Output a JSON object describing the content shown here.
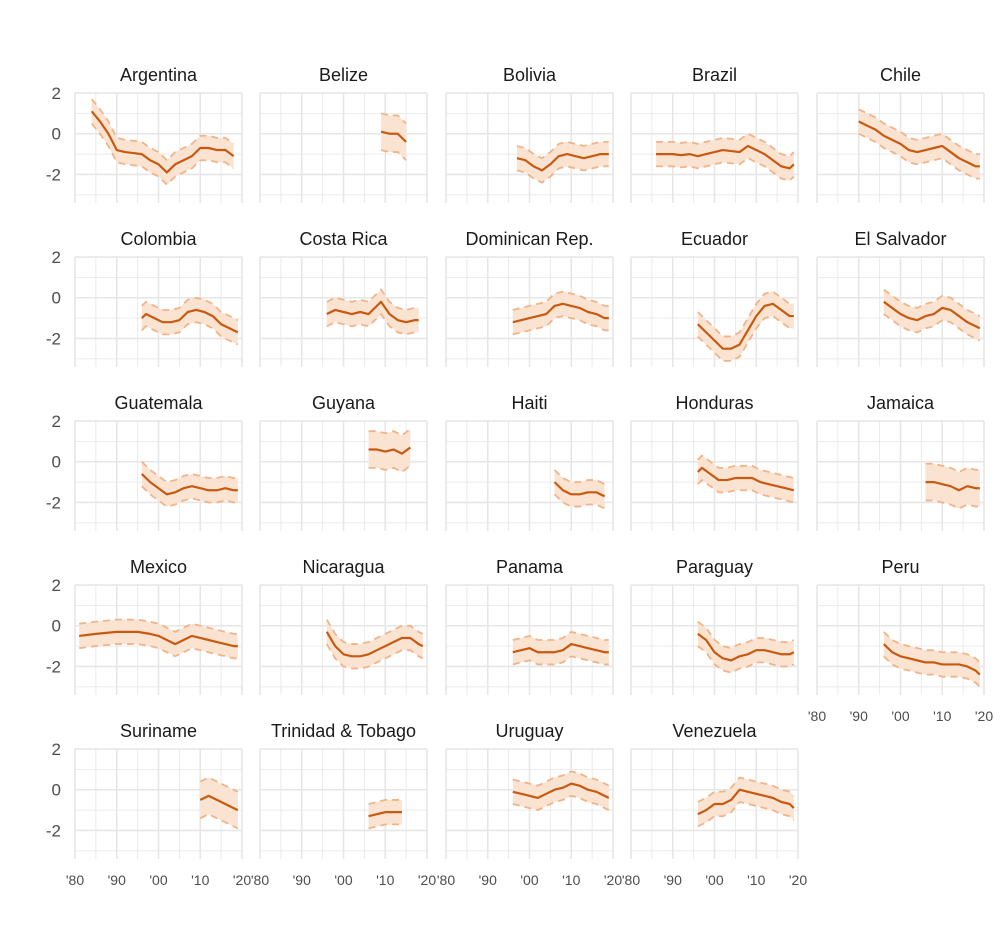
{
  "chart_data": {
    "type": "line",
    "layout": "small-multiples",
    "title": "",
    "xlabel": "",
    "ylabel": "",
    "xlim": [
      1980,
      2020
    ],
    "ylim": [
      -3.4,
      2.0
    ],
    "x_ticks": [
      1980,
      1990,
      2000,
      2010,
      2020
    ],
    "x_tick_labels": [
      "'80",
      "'90",
      "'00",
      "'10",
      "'20"
    ],
    "y_ticks": [
      2,
      0,
      -2
    ],
    "y_tick_labels": [
      "2",
      "0",
      "-2"
    ],
    "grid": true,
    "colors": {
      "line": "#c75a10",
      "band": "#fbe3d2",
      "band_edge": "#f0b48a",
      "grid": "#e6e6e6",
      "text": "#1a1a1a",
      "tick_text": "#4d4d4d"
    },
    "panels": [
      {
        "name": "Argentina",
        "x": [
          1984,
          1986,
          1988,
          1990,
          1992,
          1994,
          1996,
          1998,
          2000,
          2002,
          2004,
          2006,
          2008,
          2010,
          2012,
          2014,
          2016,
          2018
        ],
        "y": [
          1.1,
          0.6,
          0.0,
          -0.8,
          -0.9,
          -0.95,
          -1.0,
          -1.3,
          -1.5,
          -1.9,
          -1.5,
          -1.3,
          -1.1,
          -0.7,
          -0.7,
          -0.8,
          -0.8,
          -1.1
        ],
        "band": 0.6
      },
      {
        "name": "Belize",
        "x": [
          2009,
          2011,
          2013,
          2015
        ],
        "y": [
          0.1,
          0.0,
          0.0,
          -0.4
        ],
        "band": 0.9
      },
      {
        "name": "Bolivia",
        "x": [
          1997,
          1999,
          2001,
          2003,
          2005,
          2007,
          2009,
          2011,
          2013,
          2015,
          2017,
          2019
        ],
        "y": [
          -1.2,
          -1.3,
          -1.6,
          -1.8,
          -1.5,
          -1.1,
          -1.0,
          -1.1,
          -1.2,
          -1.1,
          -1.0,
          -1.0
        ],
        "band": 0.6
      },
      {
        "name": "Brazil",
        "x": [
          1986,
          1988,
          1990,
          1992,
          1994,
          1996,
          1998,
          2000,
          2002,
          2004,
          2006,
          2008,
          2010,
          2012,
          2014,
          2016,
          2018,
          2019
        ],
        "y": [
          -1.0,
          -1.0,
          -1.0,
          -1.05,
          -1.0,
          -1.1,
          -1.0,
          -0.9,
          -0.8,
          -0.85,
          -0.9,
          -0.6,
          -0.8,
          -1.0,
          -1.3,
          -1.6,
          -1.7,
          -1.5
        ],
        "band": 0.6
      },
      {
        "name": "Chile",
        "x": [
          1990,
          1992,
          1994,
          1996,
          1998,
          2000,
          2002,
          2004,
          2006,
          2008,
          2010,
          2012,
          2014,
          2016,
          2018,
          2019
        ],
        "y": [
          0.6,
          0.4,
          0.2,
          -0.1,
          -0.3,
          -0.5,
          -0.8,
          -0.9,
          -0.8,
          -0.7,
          -0.6,
          -0.9,
          -1.2,
          -1.4,
          -1.6,
          -1.6
        ],
        "band": 0.6
      },
      {
        "name": "Colombia",
        "x": [
          1996,
          1997,
          1999,
          2001,
          2003,
          2005,
          2007,
          2009,
          2011,
          2013,
          2015,
          2017,
          2019
        ],
        "y": [
          -1.0,
          -0.8,
          -1.0,
          -1.2,
          -1.2,
          -1.1,
          -0.7,
          -0.6,
          -0.7,
          -0.9,
          -1.3,
          -1.5,
          -1.7
        ],
        "band": 0.6
      },
      {
        "name": "Costa Rica",
        "x": [
          1996,
          1998,
          2000,
          2002,
          2004,
          2006,
          2008,
          2009,
          2011,
          2013,
          2015,
          2017,
          2018
        ],
        "y": [
          -0.8,
          -0.6,
          -0.7,
          -0.8,
          -0.7,
          -0.8,
          -0.4,
          -0.2,
          -0.8,
          -1.1,
          -1.2,
          -1.1,
          -1.1
        ],
        "band": 0.6
      },
      {
        "name": "Dominican Rep.",
        "x": [
          1996,
          1998,
          2000,
          2002,
          2004,
          2006,
          2008,
          2010,
          2012,
          2014,
          2016,
          2018,
          2019
        ],
        "y": [
          -1.2,
          -1.1,
          -1.0,
          -0.9,
          -0.8,
          -0.4,
          -0.3,
          -0.4,
          -0.5,
          -0.7,
          -0.8,
          -1.0,
          -1.0
        ],
        "band": 0.6
      },
      {
        "name": "Ecuador",
        "x": [
          1996,
          1998,
          2000,
          2002,
          2004,
          2006,
          2008,
          2010,
          2012,
          2014,
          2016,
          2018,
          2019
        ],
        "y": [
          -1.3,
          -1.7,
          -2.1,
          -2.5,
          -2.5,
          -2.3,
          -1.6,
          -0.9,
          -0.4,
          -0.3,
          -0.6,
          -0.9,
          -0.9
        ],
        "band": 0.6
      },
      {
        "name": "El Salvador",
        "x": [
          1996,
          1998,
          2000,
          2002,
          2004,
          2006,
          2008,
          2010,
          2012,
          2014,
          2016,
          2018,
          2019
        ],
        "y": [
          -0.2,
          -0.5,
          -0.8,
          -1.0,
          -1.1,
          -0.9,
          -0.8,
          -0.5,
          -0.6,
          -0.9,
          -1.2,
          -1.4,
          -1.5
        ],
        "band": 0.6
      },
      {
        "name": "Guatemala",
        "x": [
          1996,
          1998,
          2000,
          2002,
          2004,
          2006,
          2008,
          2010,
          2012,
          2014,
          2016,
          2018,
          2019
        ],
        "y": [
          -0.6,
          -1.0,
          -1.3,
          -1.6,
          -1.5,
          -1.3,
          -1.2,
          -1.3,
          -1.4,
          -1.4,
          -1.3,
          -1.4,
          -1.4
        ],
        "band": 0.6
      },
      {
        "name": "Guyana",
        "x": [
          2006,
          2008,
          2010,
          2012,
          2014,
          2016
        ],
        "y": [
          0.6,
          0.6,
          0.5,
          0.6,
          0.4,
          0.7
        ],
        "band": 0.9
      },
      {
        "name": "Haiti",
        "x": [
          2006,
          2008,
          2010,
          2012,
          2014,
          2016,
          2018
        ],
        "y": [
          -1.0,
          -1.4,
          -1.6,
          -1.6,
          -1.5,
          -1.5,
          -1.7
        ],
        "band": 0.6
      },
      {
        "name": "Honduras",
        "x": [
          1996,
          1997,
          1999,
          2001,
          2003,
          2005,
          2007,
          2009,
          2011,
          2013,
          2015,
          2017,
          2019
        ],
        "y": [
          -0.5,
          -0.3,
          -0.6,
          -0.9,
          -0.9,
          -0.8,
          -0.8,
          -0.8,
          -1.0,
          -1.1,
          -1.2,
          -1.3,
          -1.4
        ],
        "band": 0.6
      },
      {
        "name": "Jamaica",
        "x": [
          2006,
          2008,
          2010,
          2012,
          2014,
          2016,
          2018,
          2019
        ],
        "y": [
          -1.0,
          -1.0,
          -1.1,
          -1.2,
          -1.4,
          -1.2,
          -1.3,
          -1.3
        ],
        "band": 0.9
      },
      {
        "name": "Mexico",
        "x": [
          1981,
          1985,
          1990,
          1995,
          1998,
          2000,
          2002,
          2004,
          2006,
          2008,
          2010,
          2012,
          2014,
          2016,
          2018,
          2019
        ],
        "y": [
          -0.5,
          -0.4,
          -0.3,
          -0.3,
          -0.4,
          -0.5,
          -0.7,
          -0.9,
          -0.7,
          -0.5,
          -0.6,
          -0.7,
          -0.8,
          -0.9,
          -1.0,
          -1.0
        ],
        "band": 0.6
      },
      {
        "name": "Nicaragua",
        "x": [
          1996,
          1998,
          2000,
          2002,
          2004,
          2006,
          2008,
          2010,
          2012,
          2014,
          2016,
          2018,
          2019
        ],
        "y": [
          -0.3,
          -1.0,
          -1.4,
          -1.5,
          -1.5,
          -1.4,
          -1.2,
          -1.0,
          -0.8,
          -0.6,
          -0.6,
          -0.9,
          -1.0
        ],
        "band": 0.6
      },
      {
        "name": "Panama",
        "x": [
          1996,
          1998,
          2000,
          2002,
          2004,
          2006,
          2008,
          2010,
          2012,
          2014,
          2016,
          2018,
          2019
        ],
        "y": [
          -1.3,
          -1.2,
          -1.1,
          -1.3,
          -1.3,
          -1.3,
          -1.2,
          -0.9,
          -1.0,
          -1.1,
          -1.2,
          -1.3,
          -1.3
        ],
        "band": 0.6
      },
      {
        "name": "Paraguay",
        "x": [
          1996,
          1998,
          2000,
          2002,
          2004,
          2006,
          2008,
          2010,
          2012,
          2014,
          2016,
          2018,
          2019
        ],
        "y": [
          -0.4,
          -0.7,
          -1.3,
          -1.6,
          -1.7,
          -1.5,
          -1.4,
          -1.2,
          -1.2,
          -1.3,
          -1.4,
          -1.4,
          -1.3
        ],
        "band": 0.6
      },
      {
        "name": "Peru",
        "x": [
          1996,
          1998,
          2000,
          2002,
          2004,
          2006,
          2008,
          2010,
          2012,
          2014,
          2016,
          2018,
          2019
        ],
        "y": [
          -0.9,
          -1.3,
          -1.5,
          -1.6,
          -1.7,
          -1.8,
          -1.8,
          -1.9,
          -1.9,
          -1.9,
          -2.0,
          -2.2,
          -2.4
        ],
        "band": 0.6
      },
      {
        "name": "Suriname",
        "x": [
          2010,
          2012,
          2014,
          2016,
          2018,
          2019
        ],
        "y": [
          -0.5,
          -0.3,
          -0.5,
          -0.7,
          -0.9,
          -1.0
        ],
        "band": 0.9
      },
      {
        "name": "Trinidad & Tobago",
        "x": [
          2006,
          2008,
          2010,
          2012,
          2014
        ],
        "y": [
          -1.3,
          -1.2,
          -1.1,
          -1.1,
          -1.1
        ],
        "band": 0.6
      },
      {
        "name": "Uruguay",
        "x": [
          1996,
          1998,
          2000,
          2002,
          2004,
          2006,
          2008,
          2010,
          2012,
          2014,
          2016,
          2018,
          2019
        ],
        "y": [
          -0.1,
          -0.2,
          -0.3,
          -0.4,
          -0.2,
          0.0,
          0.1,
          0.3,
          0.2,
          0.0,
          -0.1,
          -0.3,
          -0.4
        ],
        "band": 0.6
      },
      {
        "name": "Venezuela",
        "x": [
          1996,
          1998,
          2000,
          2002,
          2004,
          2006,
          2008,
          2010,
          2012,
          2014,
          2016,
          2018,
          2019
        ],
        "y": [
          -1.2,
          -1.0,
          -0.7,
          -0.7,
          -0.5,
          0.0,
          -0.1,
          -0.2,
          -0.3,
          -0.4,
          -0.6,
          -0.7,
          -0.9
        ],
        "band": 0.6
      }
    ]
  }
}
